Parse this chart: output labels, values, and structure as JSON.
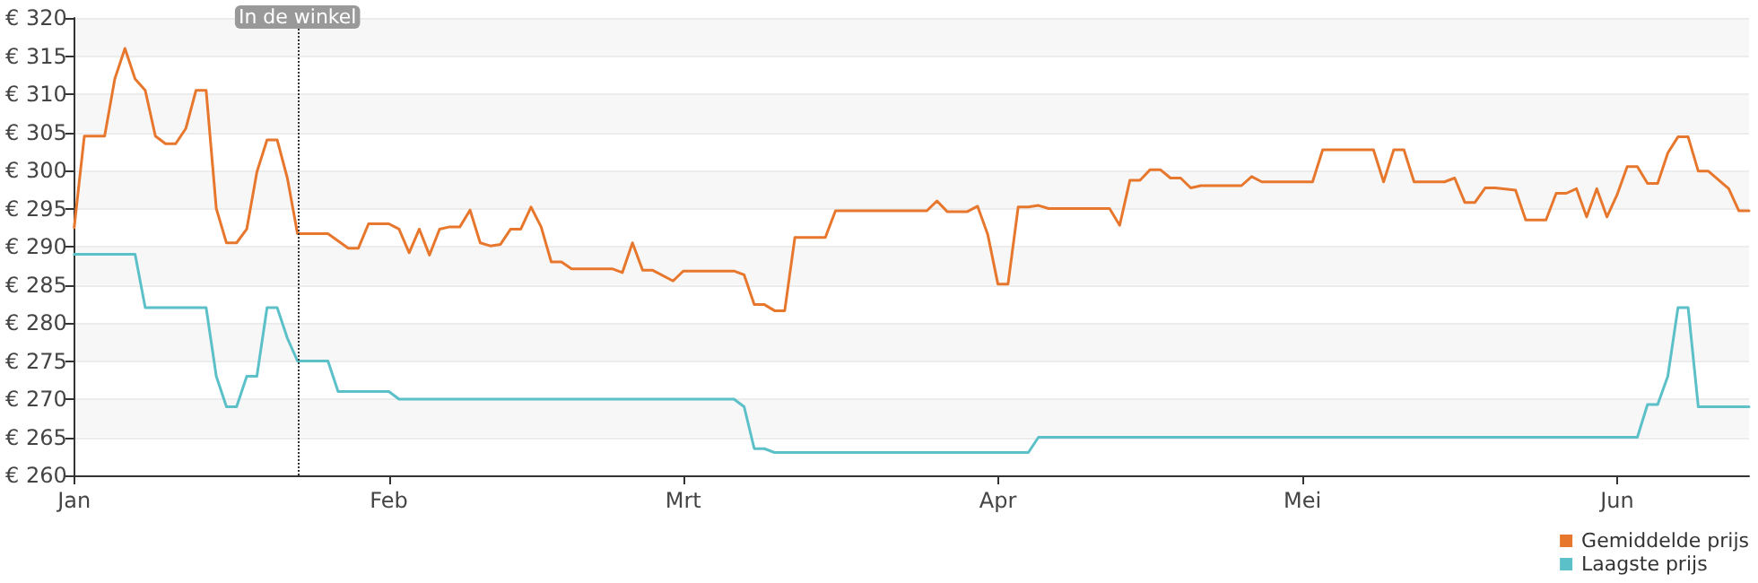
{
  "chart_data": {
    "type": "line",
    "xlim": [
      "--01-01",
      "--06-14"
    ],
    "xticks": [
      {
        "value": "--01-01",
        "label": "Jan"
      },
      {
        "value": "--02-01",
        "label": "Feb"
      },
      {
        "value": "--03-01",
        "label": "Mrt"
      },
      {
        "value": "--04-01",
        "label": "Apr"
      },
      {
        "value": "--05-01",
        "label": "Mei"
      },
      {
        "value": "--06-01",
        "label": "Jun"
      }
    ],
    "ylim": [
      260,
      320
    ],
    "yticks": [
      {
        "value": 260,
        "label": "€ 260"
      },
      {
        "value": 265,
        "label": "€ 265"
      },
      {
        "value": 270,
        "label": "€ 270"
      },
      {
        "value": 275,
        "label": "€ 275"
      },
      {
        "value": 280,
        "label": "€ 280"
      },
      {
        "value": 285,
        "label": "€ 285"
      },
      {
        "value": 290,
        "label": "€ 290"
      },
      {
        "value": 295,
        "label": "€ 295"
      },
      {
        "value": 300,
        "label": "€ 300"
      },
      {
        "value": 305,
        "label": "€ 305"
      },
      {
        "value": 310,
        "label": "€ 310"
      },
      {
        "value": 315,
        "label": "€ 315"
      },
      {
        "value": 320,
        "label": "€ 320"
      }
    ],
    "grid": "y",
    "legend": "bottom right",
    "marker": "none",
    "line_style": "solid",
    "ref_lines": [
      {
        "axis": "x",
        "value": "--01-23",
        "label": "In de winkel",
        "line_style": "dotted",
        "color": "#333333"
      }
    ],
    "series": [
      {
        "name": "Gemiddelde prijs",
        "color": "#e8772e",
        "x": [
          "--01-01",
          "--01-02",
          "--01-04",
          "--01-05",
          "--01-06",
          "--01-07",
          "--01-08",
          "--01-09",
          "--01-10",
          "--01-11",
          "--01-12",
          "--01-13",
          "--01-14",
          "--01-15",
          "--01-16",
          "--01-17",
          "--01-18",
          "--01-19",
          "--01-20",
          "--01-21",
          "--01-22",
          "--01-23",
          "--01-26",
          "--01-28",
          "--01-29",
          "--01-30",
          "--01-31",
          "--02-01",
          "--02-02",
          "--02-03",
          "--02-04",
          "--02-05",
          "--02-06",
          "--02-07",
          "--02-08",
          "--02-09",
          "--02-10",
          "--02-11",
          "--02-12",
          "--02-13",
          "--02-14",
          "--02-15",
          "--02-16",
          "--02-17",
          "--02-18",
          "--02-19",
          "--02-23",
          "--02-24",
          "--02-25",
          "--02-26",
          "--02-27",
          "--02-29",
          "--03-01",
          "--03-06",
          "--03-07",
          "--03-08",
          "--03-09",
          "--03-10",
          "--03-11",
          "--03-12",
          "--03-15",
          "--03-16",
          "--03-25",
          "--03-26",
          "--03-27",
          "--03-29",
          "--03-30",
          "--03-31",
          "--04-01",
          "--04-02",
          "--04-03",
          "--04-04",
          "--04-05",
          "--04-06",
          "--04-12",
          "--04-13",
          "--04-14",
          "--04-15",
          "--04-16",
          "--04-17",
          "--04-18",
          "--04-19",
          "--04-20",
          "--04-21",
          "--04-25",
          "--04-26",
          "--04-27",
          "--05-02",
          "--05-03",
          "--05-08",
          "--05-09",
          "--05-10",
          "--05-11",
          "--05-12",
          "--05-15",
          "--05-16",
          "--05-17",
          "--05-18",
          "--05-19",
          "--05-20",
          "--05-22",
          "--05-23",
          "--05-25",
          "--05-26",
          "--05-27",
          "--05-28",
          "--05-29",
          "--05-30",
          "--05-31",
          "--06-01",
          "--06-02",
          "--06-03",
          "--06-04",
          "--06-05",
          "--06-06",
          "--06-07",
          "--06-08",
          "--06-09",
          "--06-10",
          "--06-12",
          "--06-13",
          "--06-14"
        ],
        "values": [
          292.5,
          304.5,
          304.5,
          312,
          316,
          312,
          310.5,
          304.5,
          303.5,
          303.5,
          305.5,
          310.5,
          310.5,
          295,
          290.5,
          290.5,
          292.3,
          299.8,
          304,
          304,
          299,
          291.7,
          291.7,
          289.8,
          289.8,
          293,
          293,
          293,
          292.3,
          289.2,
          292.3,
          288.9,
          292.3,
          292.6,
          292.6,
          294.8,
          290.5,
          290.1,
          290.3,
          292.3,
          292.3,
          295.2,
          292.6,
          288,
          288,
          287.1,
          287.1,
          286.6,
          290.5,
          286.9,
          286.9,
          285.5,
          286.8,
          286.8,
          286.3,
          282.4,
          282.4,
          281.6,
          281.6,
          291.2,
          291.2,
          294.7,
          294.7,
          296,
          294.6,
          294.6,
          295.3,
          291.6,
          285.1,
          285.1,
          295.2,
          295.2,
          295.4,
          295,
          295,
          292.8,
          298.7,
          298.7,
          300.1,
          300.1,
          299,
          299,
          297.7,
          298,
          298,
          299.2,
          298.5,
          298.5,
          302.7,
          302.7,
          298.5,
          302.7,
          302.7,
          298.5,
          298.5,
          299,
          295.8,
          295.8,
          297.7,
          297.7,
          297.4,
          293.5,
          293.5,
          297,
          297,
          297.6,
          293.9,
          297.6,
          293.9,
          296.8,
          300.5,
          300.5,
          298.3,
          298.3,
          302.3,
          304.4,
          304.4,
          299.9,
          299.9,
          297.6,
          294.7,
          294.7
        ]
      },
      {
        "name": "Laagste prijs",
        "color": "#5bc0c8",
        "x": [
          "--01-01",
          "--01-07",
          "--01-08",
          "--01-14",
          "--01-15",
          "--01-16",
          "--01-17",
          "--01-18",
          "--01-19",
          "--01-20",
          "--01-21",
          "--01-22",
          "--01-23",
          "--01-26",
          "--01-27",
          "--02-01",
          "--02-02",
          "--03-06",
          "--03-07",
          "--03-08",
          "--03-09",
          "--03-10",
          "--04-04",
          "--04-05",
          "--06-03",
          "--06-04",
          "--06-05",
          "--06-06",
          "--06-07",
          "--06-08",
          "--06-09",
          "--06-14"
        ],
        "values": [
          289,
          289,
          282,
          282,
          273,
          269,
          269,
          273,
          273,
          282,
          282,
          278,
          275,
          275,
          271,
          271,
          270,
          270,
          269,
          263.5,
          263.5,
          263,
          263,
          265,
          265,
          269.3,
          269.3,
          273,
          282,
          282,
          269,
          269
        ]
      }
    ]
  }
}
